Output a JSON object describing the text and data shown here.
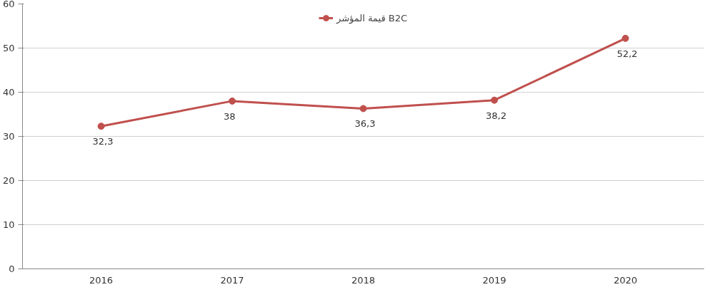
{
  "chart_data": {
    "type": "line",
    "categories": [
      "2016",
      "2017",
      "2018",
      "2019",
      "2020"
    ],
    "series": [
      {
        "name": "قيمة المؤشر B2C",
        "color": "#c0504d",
        "values": [
          32.3,
          38,
          36.3,
          38.2,
          52.2
        ],
        "value_labels": [
          "32,3",
          "38",
          "36,3",
          "38,2",
          "52,2"
        ]
      }
    ],
    "ylim": [
      0,
      60
    ],
    "yticks": [
      0,
      10,
      20,
      30,
      40,
      50,
      60
    ],
    "grid": "y",
    "legend": "top",
    "marker": "circle",
    "line_style": "solid"
  }
}
